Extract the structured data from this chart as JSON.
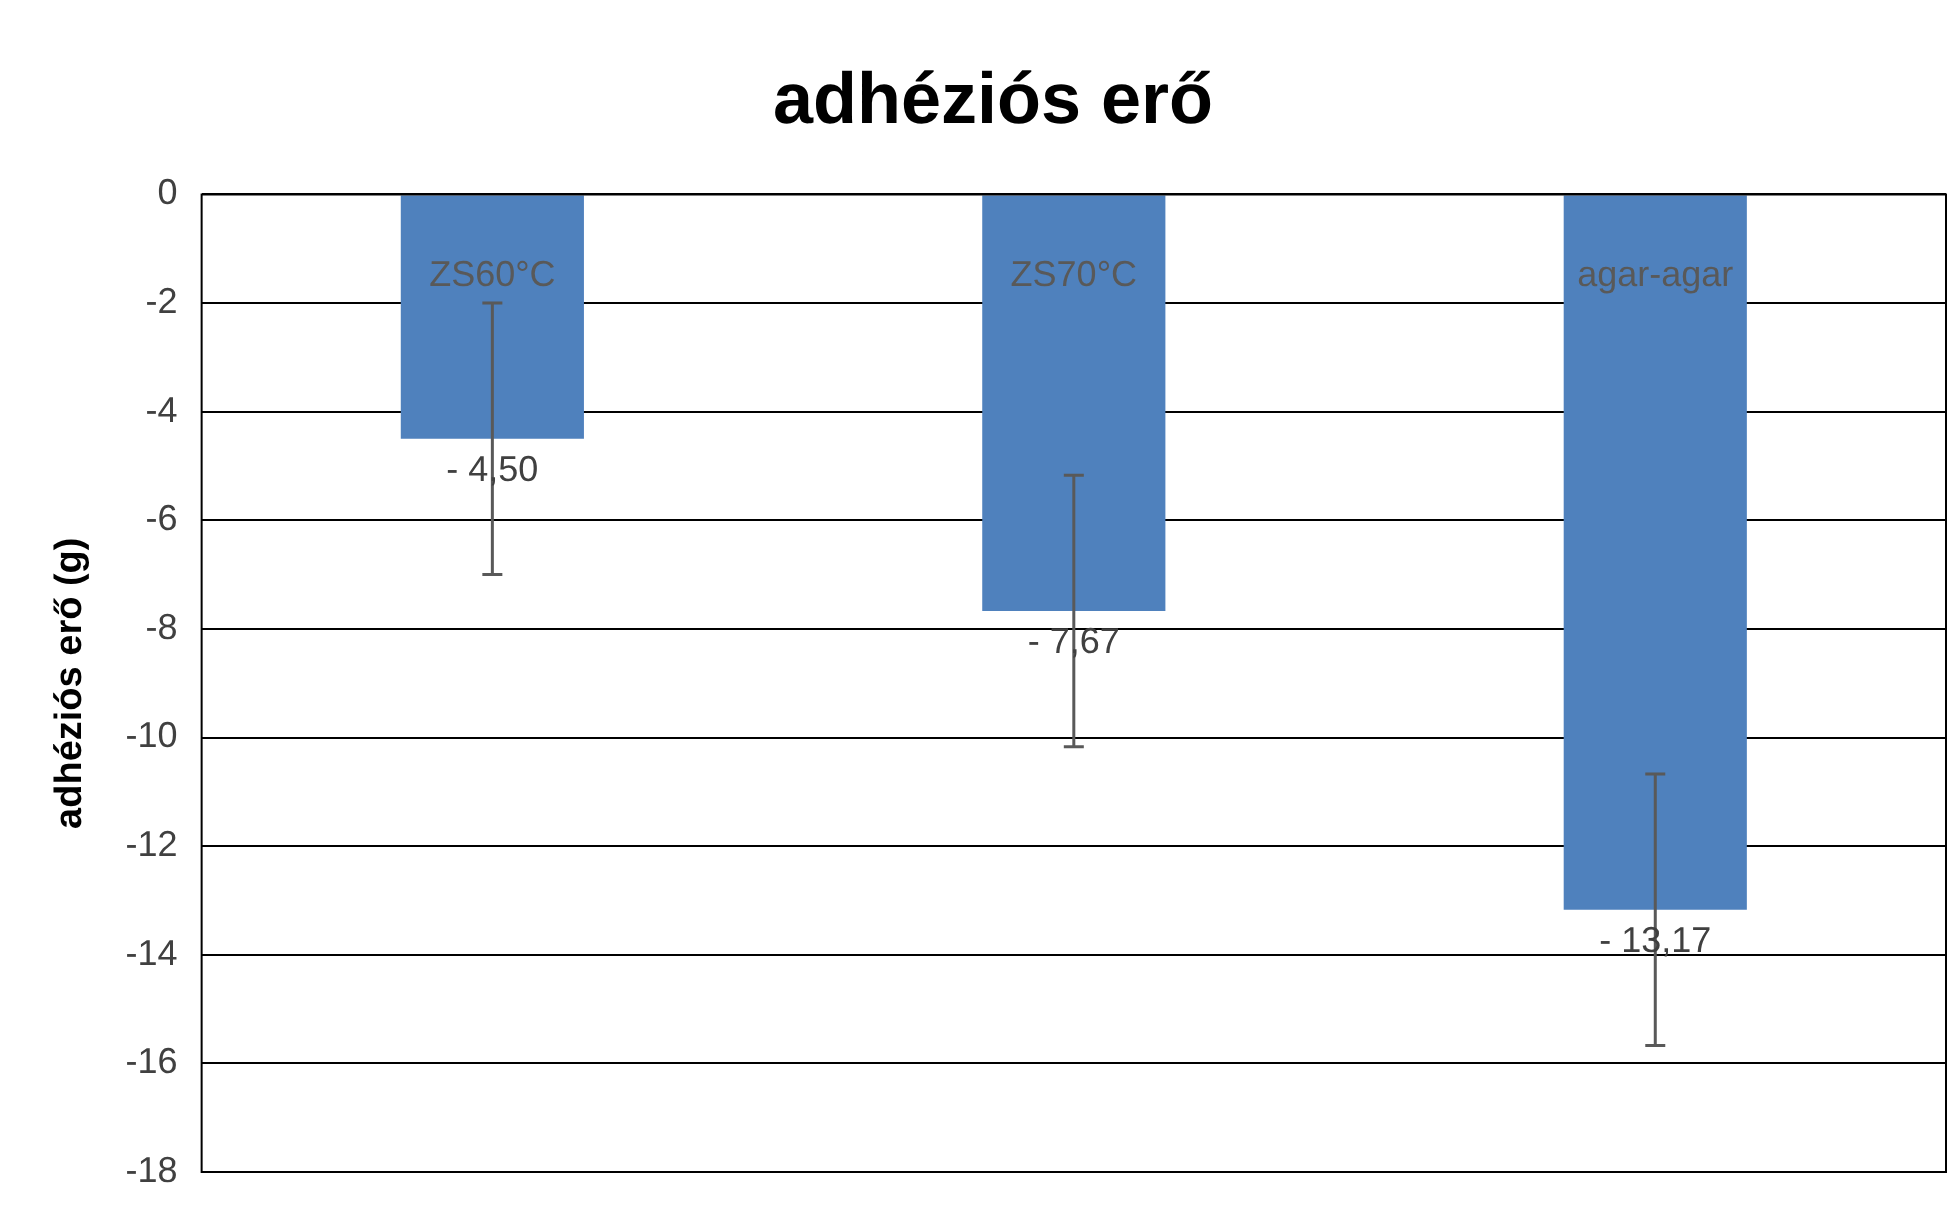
{
  "chart_data": {
    "type": "bar",
    "title": "adhéziós erő",
    "ylabel": "adhéziós erő (g)",
    "categories": [
      "ZS60°C",
      "ZS70°C",
      "agar-agar"
    ],
    "values": [
      -4.5,
      -7.67,
      -13.17
    ],
    "errors": [
      2.5,
      2.5,
      2.5
    ],
    "value_labels": [
      "- 4,50",
      "- 7,67",
      "- 13,17"
    ],
    "color": "#4f81bd",
    "ylim": [
      -18,
      0
    ],
    "yticks": [
      0,
      -2,
      -4,
      -6,
      -8,
      -10,
      -12,
      -14,
      -16,
      -18
    ],
    "grid": "y"
  }
}
